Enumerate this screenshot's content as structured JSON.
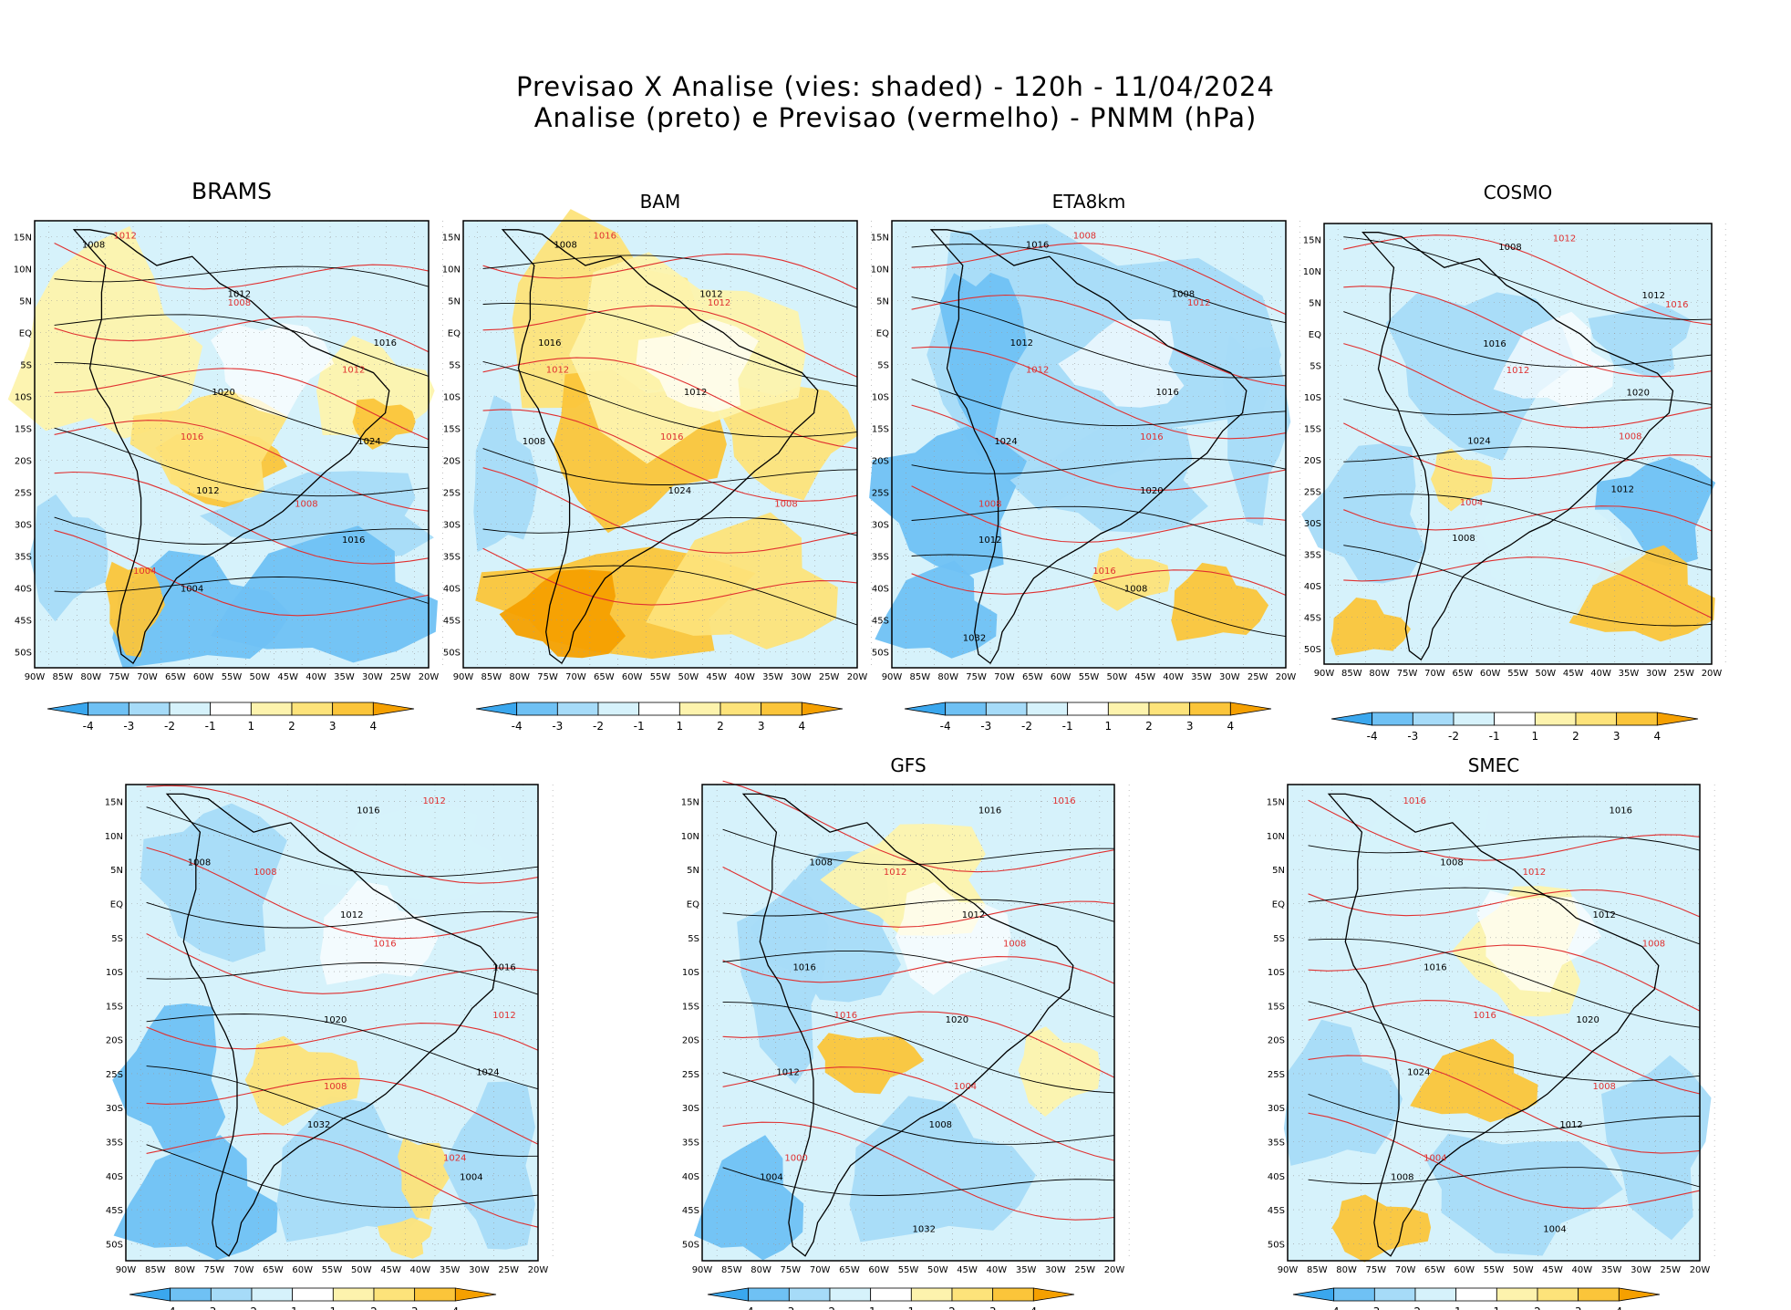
{
  "title": {
    "line1": "Previsao X Analise (vies: shaded) - 120h - 11/04/2024",
    "line2": "Analise (preto) e Previsao (vermelho) - PNMM (hPa)"
  },
  "lat_labels": [
    "15N",
    "10N",
    "5N",
    "EQ",
    "5S",
    "10S",
    "15S",
    "20S",
    "25S",
    "30S",
    "35S",
    "40S",
    "45S",
    "50S"
  ],
  "lon_labels": [
    "90W",
    "85W",
    "80W",
    "75W",
    "70W",
    "65W",
    "60W",
    "55W",
    "50W",
    "45W",
    "40W",
    "35W",
    "30W",
    "25W",
    "20W"
  ],
  "colorbar_labels": [
    "-4",
    "-3",
    "-2",
    "-1",
    "1",
    "2",
    "3",
    "4"
  ],
  "colors": {
    "neg4": "#3aa7ee",
    "neg3": "#6fc1f4",
    "neg2": "#a6dbf8",
    "neg1": "#d6f2fb",
    "zero": "#ffffff",
    "pos1": "#fdf3ad",
    "pos2": "#fde37a",
    "pos3": "#fbc53a",
    "pos4": "#f5a000",
    "analysis": "#000000",
    "forecast": "#e03030"
  },
  "panels": [
    {
      "id": "brams",
      "name": "BRAMS",
      "bias": "warm-north-cold-south",
      "isobars_black": [
        "1008",
        "1012",
        "1016",
        "1020",
        "1024",
        "1012",
        "1016",
        "1004"
      ],
      "isobars_red": [
        "1012",
        "1008",
        "1012",
        "1016",
        "1008",
        "1004"
      ]
    },
    {
      "id": "bam",
      "name": "BAM",
      "bias": "warm",
      "isobars_black": [
        "1008",
        "1012",
        "1016",
        "1012",
        "1008",
        "1024"
      ],
      "isobars_red": [
        "1016",
        "1012",
        "1012",
        "1016",
        "1008"
      ]
    },
    {
      "id": "eta8km",
      "name": "ETA8km",
      "bias": "cold",
      "isobars_black": [
        "1016",
        "1008",
        "1012",
        "1016",
        "1024",
        "1020",
        "1012",
        "1008",
        "1032"
      ],
      "isobars_red": [
        "1008",
        "1012",
        "1012",
        "1016",
        "1008",
        "1016"
      ]
    },
    {
      "id": "cosmo",
      "name": "COSMO",
      "bias": "cold-north-warm-southeast",
      "isobars_black": [
        "1008",
        "1012",
        "1016",
        "1020",
        "1024",
        "1012",
        "1008"
      ],
      "isobars_red": [
        "1012",
        "1016",
        "1012",
        "1008",
        "1004"
      ]
    },
    {
      "id": "unnamed",
      "name": "",
      "bias": "cold-mixed",
      "isobars_black": [
        "1016",
        "1008",
        "1012",
        "1016",
        "1020",
        "1024",
        "1032",
        "1004"
      ],
      "isobars_red": [
        "1012",
        "1008",
        "1016",
        "1012",
        "1008",
        "1024"
      ]
    },
    {
      "id": "gfs",
      "name": "GFS",
      "bias": "cold-south",
      "isobars_black": [
        "1016",
        "1008",
        "1012",
        "1016",
        "1020",
        "1012",
        "1008",
        "1004",
        "1032"
      ],
      "isobars_red": [
        "1016",
        "1012",
        "1008",
        "1016",
        "1004",
        "1000"
      ]
    },
    {
      "id": "smec",
      "name": "SMEC",
      "bias": "cold-warm-center",
      "isobars_black": [
        "1016",
        "1008",
        "1012",
        "1016",
        "1020",
        "1024",
        "1012",
        "1008",
        "1004"
      ],
      "isobars_red": [
        "1016",
        "1012",
        "1008",
        "1016",
        "1008",
        "1004"
      ]
    }
  ]
}
